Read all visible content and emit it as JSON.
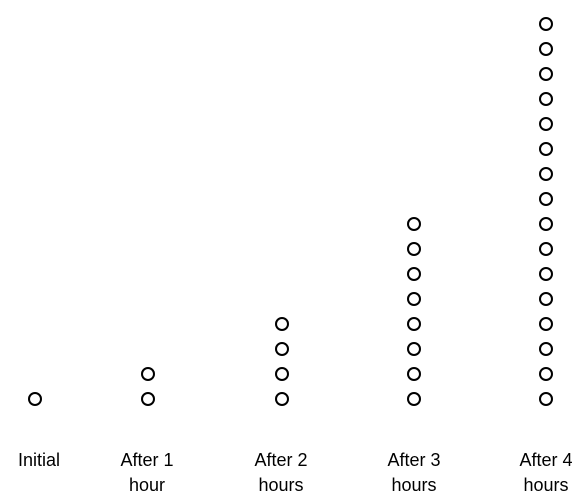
{
  "groups": [
    {
      "label_line1": "Initial",
      "label_line2": "",
      "count": 1
    },
    {
      "label_line1": "After 1",
      "label_line2": "hour",
      "count": 2
    },
    {
      "label_line1": "After 2",
      "label_line2": "hours",
      "count": 4
    },
    {
      "label_line1": "After 3",
      "label_line2": "hours",
      "count": 8
    },
    {
      "label_line1": "After 4",
      "label_line2": "hours",
      "count": 16
    }
  ],
  "colors": {
    "stroke": "#000000",
    "background": "#ffffff"
  }
}
